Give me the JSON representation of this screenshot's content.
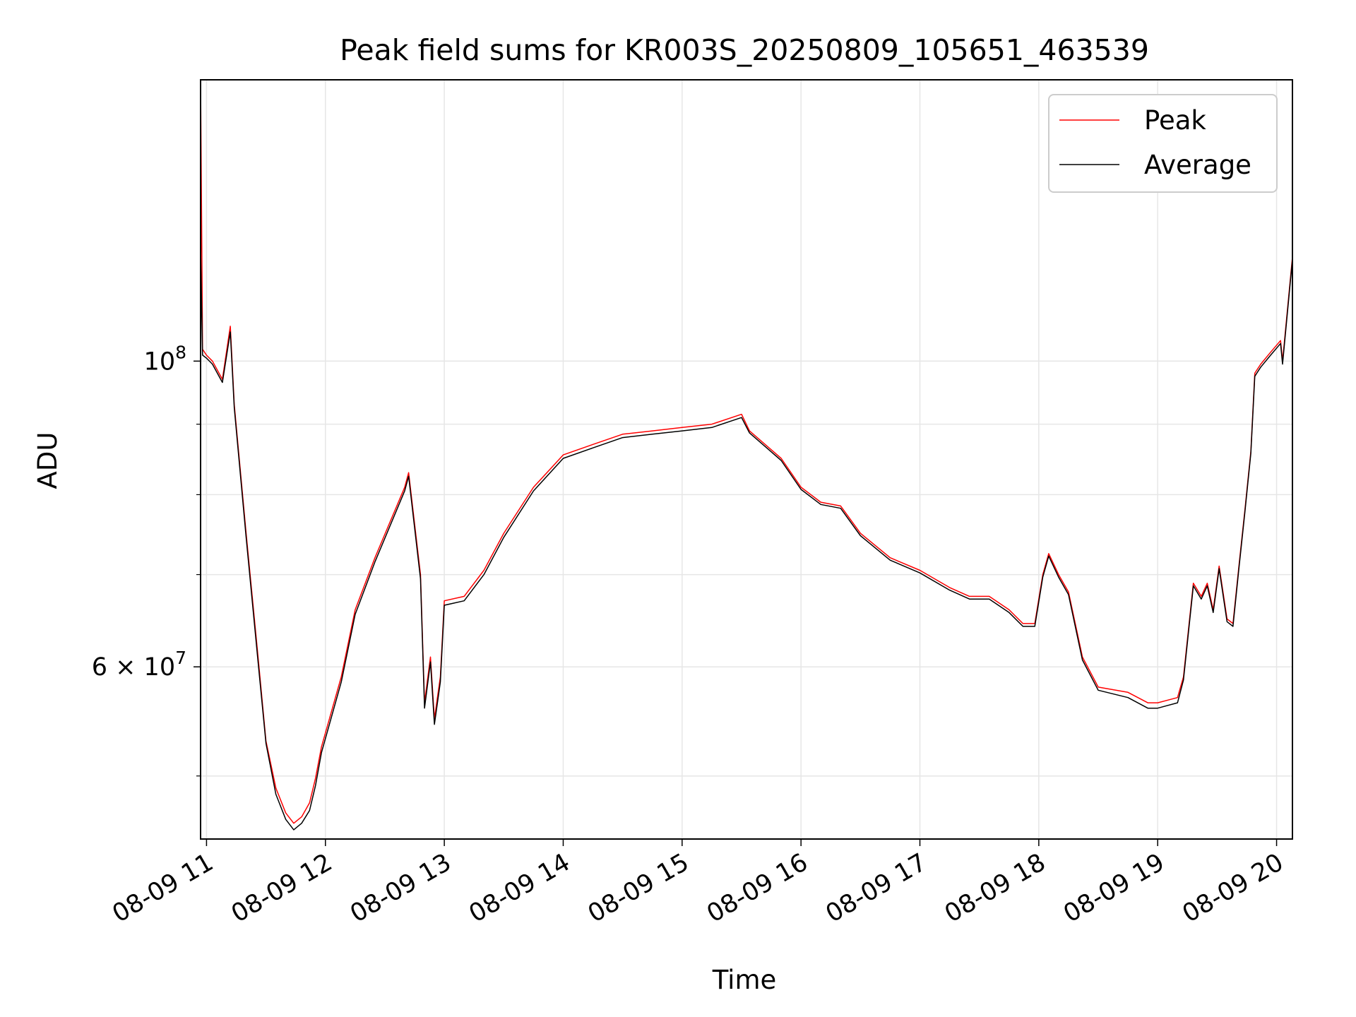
{
  "chart_data": {
    "type": "line",
    "title": "Peak field sums for KR003S_20250809_105651_463539",
    "xlabel": "Time",
    "ylabel": "ADU",
    "x_scale": "time",
    "y_scale": "log",
    "xlim": [
      "2025-08-09 10:57",
      "2025-08-09 20:08"
    ],
    "ylim": [
      45000000,
      160000000
    ],
    "x_ticks": [
      "08-09 11",
      "08-09 12",
      "08-09 13",
      "08-09 14",
      "08-09 15",
      "08-09 16",
      "08-09 17",
      "08-09 18",
      "08-09 19",
      "08-09 20"
    ],
    "y_ticks": [
      {
        "value": 60000000,
        "label_base": "6 × 10",
        "label_exp": "7"
      },
      {
        "value": 100000000,
        "label_base": "10",
        "label_exp": "8"
      }
    ],
    "y_minor_ticks": [
      50000000,
      70000000,
      80000000,
      90000000
    ],
    "grid": true,
    "legend_position": "upper right",
    "colors": {
      "peak": "#ff0000",
      "average": "#000000"
    },
    "series": [
      {
        "name": "Peak",
        "color": "#ff0000",
        "points": [
          [
            "2025-08-09 10:57",
            110000000
          ],
          [
            "2025-08-09 10:57",
            165000000
          ],
          [
            "2025-08-09 10:58",
            102000000
          ],
          [
            "2025-08-09 11:00",
            101000000
          ],
          [
            "2025-08-09 11:03",
            100000000
          ],
          [
            "2025-08-09 11:08",
            97000000
          ],
          [
            "2025-08-09 11:12",
            106000000
          ],
          [
            "2025-08-09 11:14",
            93000000
          ],
          [
            "2025-08-09 11:20",
            75000000
          ],
          [
            "2025-08-09 11:26",
            61000000
          ],
          [
            "2025-08-09 11:30",
            53000000
          ],
          [
            "2025-08-09 11:35",
            49000000
          ],
          [
            "2025-08-09 11:40",
            47000000
          ],
          [
            "2025-08-09 11:44",
            46200000
          ],
          [
            "2025-08-09 11:48",
            46700000
          ],
          [
            "2025-08-09 11:52",
            47800000
          ],
          [
            "2025-08-09 11:55",
            49800000
          ],
          [
            "2025-08-09 11:58",
            52500000
          ],
          [
            "2025-08-09 12:02",
            55000000
          ],
          [
            "2025-08-09 12:08",
            59000000
          ],
          [
            "2025-08-09 12:15",
            66000000
          ],
          [
            "2025-08-09 12:25",
            72000000
          ],
          [
            "2025-08-09 12:40",
            81000000
          ],
          [
            "2025-08-09 12:42",
            83000000
          ],
          [
            "2025-08-09 12:48",
            70000000
          ],
          [
            "2025-08-09 12:50",
            56500000
          ],
          [
            "2025-08-09 12:53",
            61000000
          ],
          [
            "2025-08-09 12:55",
            55000000
          ],
          [
            "2025-08-09 12:58",
            59000000
          ],
          [
            "2025-08-09 13:00",
            67000000
          ],
          [
            "2025-08-09 13:10",
            67500000
          ],
          [
            "2025-08-09 13:20",
            70500000
          ],
          [
            "2025-08-09 13:30",
            75000000
          ],
          [
            "2025-08-09 13:45",
            81000000
          ],
          [
            "2025-08-09 14:00",
            85500000
          ],
          [
            "2025-08-09 14:15",
            87000000
          ],
          [
            "2025-08-09 14:30",
            88500000
          ],
          [
            "2025-08-09 14:45",
            89000000
          ],
          [
            "2025-08-09 15:00",
            89500000
          ],
          [
            "2025-08-09 15:15",
            90000000
          ],
          [
            "2025-08-09 15:30",
            91500000
          ],
          [
            "2025-08-09 15:34",
            89000000
          ],
          [
            "2025-08-09 15:50",
            85000000
          ],
          [
            "2025-08-09 16:00",
            81000000
          ],
          [
            "2025-08-09 16:10",
            79000000
          ],
          [
            "2025-08-09 16:20",
            78500000
          ],
          [
            "2025-08-09 16:30",
            75000000
          ],
          [
            "2025-08-09 16:45",
            72000000
          ],
          [
            "2025-08-09 17:00",
            70500000
          ],
          [
            "2025-08-09 17:15",
            68500000
          ],
          [
            "2025-08-09 17:25",
            67500000
          ],
          [
            "2025-08-09 17:35",
            67500000
          ],
          [
            "2025-08-09 17:45",
            66000000
          ],
          [
            "2025-08-09 17:52",
            64500000
          ],
          [
            "2025-08-09 17:58",
            64500000
          ],
          [
            "2025-08-09 18:02",
            70000000
          ],
          [
            "2025-08-09 18:05",
            72500000
          ],
          [
            "2025-08-09 18:10",
            70000000
          ],
          [
            "2025-08-09 18:15",
            68000000
          ],
          [
            "2025-08-09 18:22",
            61000000
          ],
          [
            "2025-08-09 18:30",
            58000000
          ],
          [
            "2025-08-09 18:45",
            57500000
          ],
          [
            "2025-08-09 18:55",
            56500000
          ],
          [
            "2025-08-09 19:00",
            56500000
          ],
          [
            "2025-08-09 19:10",
            57000000
          ],
          [
            "2025-08-09 19:13",
            59000000
          ],
          [
            "2025-08-09 19:18",
            69000000
          ],
          [
            "2025-08-09 19:22",
            67500000
          ],
          [
            "2025-08-09 19:25",
            69000000
          ],
          [
            "2025-08-09 19:28",
            66000000
          ],
          [
            "2025-08-09 19:31",
            71000000
          ],
          [
            "2025-08-09 19:35",
            65000000
          ],
          [
            "2025-08-09 19:38",
            64500000
          ],
          [
            "2025-08-09 19:41",
            71000000
          ],
          [
            "2025-08-09 19:44",
            78000000
          ],
          [
            "2025-08-09 19:47",
            86000000
          ],
          [
            "2025-08-09 19:49",
            98000000
          ],
          [
            "2025-08-09 19:52",
            99500000
          ],
          [
            "2025-08-09 19:57",
            101500000
          ],
          [
            "2025-08-09 20:02",
            103500000
          ],
          [
            "2025-08-09 20:03",
            100000000
          ],
          [
            "2025-08-09 20:08",
            119000000
          ]
        ]
      },
      {
        "name": "Average",
        "color": "#000000",
        "points": [
          [
            "2025-08-09 10:57",
            104000000
          ],
          [
            "2025-08-09 10:57",
            121000000
          ],
          [
            "2025-08-09 10:58",
            101000000
          ],
          [
            "2025-08-09 11:00",
            100500000
          ],
          [
            "2025-08-09 11:03",
            99500000
          ],
          [
            "2025-08-09 11:08",
            96500000
          ],
          [
            "2025-08-09 11:12",
            105000000
          ],
          [
            "2025-08-09 11:14",
            92500000
          ],
          [
            "2025-08-09 11:20",
            74500000
          ],
          [
            "2025-08-09 11:26",
            60500000
          ],
          [
            "2025-08-09 11:30",
            52800000
          ],
          [
            "2025-08-09 11:35",
            48500000
          ],
          [
            "2025-08-09 11:40",
            46500000
          ],
          [
            "2025-08-09 11:44",
            45700000
          ],
          [
            "2025-08-09 11:48",
            46200000
          ],
          [
            "2025-08-09 11:52",
            47200000
          ],
          [
            "2025-08-09 11:55",
            49200000
          ],
          [
            "2025-08-09 11:58",
            52000000
          ],
          [
            "2025-08-09 12:02",
            54500000
          ],
          [
            "2025-08-09 12:08",
            58500000
          ],
          [
            "2025-08-09 12:15",
            65500000
          ],
          [
            "2025-08-09 12:25",
            71500000
          ],
          [
            "2025-08-09 12:40",
            80500000
          ],
          [
            "2025-08-09 12:42",
            82500000
          ],
          [
            "2025-08-09 12:48",
            69500000
          ],
          [
            "2025-08-09 12:50",
            56000000
          ],
          [
            "2025-08-09 12:53",
            60500000
          ],
          [
            "2025-08-09 12:55",
            54500000
          ],
          [
            "2025-08-09 12:58",
            58500000
          ],
          [
            "2025-08-09 13:00",
            66500000
          ],
          [
            "2025-08-09 13:10",
            67000000
          ],
          [
            "2025-08-09 13:20",
            70000000
          ],
          [
            "2025-08-09 13:30",
            74500000
          ],
          [
            "2025-08-09 13:45",
            80500000
          ],
          [
            "2025-08-09 14:00",
            85000000
          ],
          [
            "2025-08-09 14:15",
            86500000
          ],
          [
            "2025-08-09 14:30",
            88000000
          ],
          [
            "2025-08-09 14:45",
            88500000
          ],
          [
            "2025-08-09 15:00",
            89000000
          ],
          [
            "2025-08-09 15:15",
            89500000
          ],
          [
            "2025-08-09 15:30",
            91000000
          ],
          [
            "2025-08-09 15:34",
            88700000
          ],
          [
            "2025-08-09 15:50",
            84700000
          ],
          [
            "2025-08-09 16:00",
            80700000
          ],
          [
            "2025-08-09 16:10",
            78700000
          ],
          [
            "2025-08-09 16:20",
            78200000
          ],
          [
            "2025-08-09 16:30",
            74700000
          ],
          [
            "2025-08-09 16:45",
            71700000
          ],
          [
            "2025-08-09 17:00",
            70200000
          ],
          [
            "2025-08-09 17:15",
            68200000
          ],
          [
            "2025-08-09 17:25",
            67200000
          ],
          [
            "2025-08-09 17:35",
            67200000
          ],
          [
            "2025-08-09 17:45",
            65700000
          ],
          [
            "2025-08-09 17:52",
            64200000
          ],
          [
            "2025-08-09 17:58",
            64200000
          ],
          [
            "2025-08-09 18:02",
            69700000
          ],
          [
            "2025-08-09 18:05",
            72200000
          ],
          [
            "2025-08-09 18:10",
            69700000
          ],
          [
            "2025-08-09 18:15",
            67700000
          ],
          [
            "2025-08-09 18:22",
            60700000
          ],
          [
            "2025-08-09 18:30",
            57700000
          ],
          [
            "2025-08-09 18:45",
            57000000
          ],
          [
            "2025-08-09 18:55",
            56000000
          ],
          [
            "2025-08-09 19:00",
            56000000
          ],
          [
            "2025-08-09 19:10",
            56500000
          ],
          [
            "2025-08-09 19:13",
            58700000
          ],
          [
            "2025-08-09 19:18",
            68700000
          ],
          [
            "2025-08-09 19:22",
            67200000
          ],
          [
            "2025-08-09 19:25",
            68700000
          ],
          [
            "2025-08-09 19:28",
            65700000
          ],
          [
            "2025-08-09 19:31",
            70700000
          ],
          [
            "2025-08-09 19:35",
            64700000
          ],
          [
            "2025-08-09 19:38",
            64200000
          ],
          [
            "2025-08-09 19:41",
            70700000
          ],
          [
            "2025-08-09 19:44",
            77700000
          ],
          [
            "2025-08-09 19:47",
            85700000
          ],
          [
            "2025-08-09 19:49",
            97500000
          ],
          [
            "2025-08-09 19:52",
            99000000
          ],
          [
            "2025-08-09 19:57",
            101000000
          ],
          [
            "2025-08-09 20:02",
            103000000
          ],
          [
            "2025-08-09 20:03",
            99500000
          ],
          [
            "2025-08-09 20:08",
            118500000
          ]
        ]
      }
    ]
  }
}
